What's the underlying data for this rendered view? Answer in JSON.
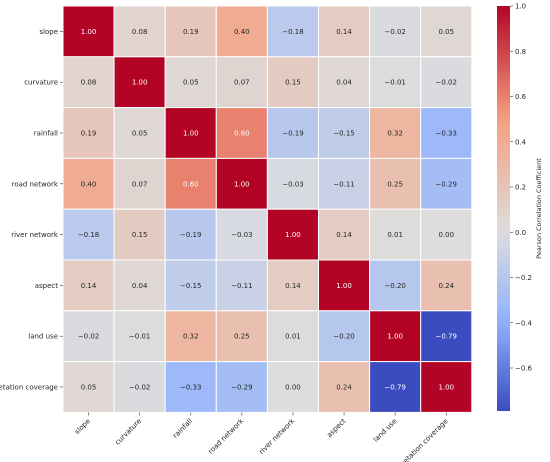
{
  "chart_data": {
    "type": "heatmap",
    "rows": [
      "slope",
      "curvature",
      "rainfall",
      "road network",
      "river network",
      "aspect",
      "land use",
      "vegetation coverage"
    ],
    "columns": [
      "slope",
      "curvature",
      "rainfall",
      "road network",
      "river network",
      "aspect",
      "land use",
      "vegetation coverage"
    ],
    "values": [
      [
        1.0,
        0.08,
        0.19,
        0.4,
        -0.18,
        0.14,
        -0.02,
        0.05
      ],
      [
        0.08,
        1.0,
        0.05,
        0.07,
        0.15,
        0.04,
        -0.01,
        -0.02
      ],
      [
        0.19,
        0.05,
        1.0,
        0.6,
        -0.19,
        -0.15,
        0.32,
        -0.33
      ],
      [
        0.4,
        0.07,
        0.6,
        1.0,
        -0.03,
        -0.11,
        0.25,
        -0.29
      ],
      [
        -0.18,
        0.15,
        -0.19,
        -0.03,
        1.0,
        0.14,
        0.01,
        0.0
      ],
      [
        0.14,
        0.04,
        -0.15,
        -0.11,
        0.14,
        1.0,
        -0.2,
        0.24
      ],
      [
        -0.02,
        -0.01,
        0.32,
        0.25,
        0.01,
        -0.2,
        1.0,
        -0.79
      ],
      [
        0.05,
        -0.02,
        -0.33,
        -0.29,
        0.0,
        0.24,
        -0.79,
        1.0
      ]
    ],
    "colorbar": {
      "label": "Pearson Correlation Coefficient",
      "range": [
        -0.79,
        1.0
      ],
      "ticks": [
        -0.6,
        -0.4,
        -0.2,
        0.0,
        0.2,
        0.4,
        0.6,
        0.8,
        1.0
      ],
      "tick_labels": [
        "−0.6",
        "−0.4",
        "−0.2",
        "0.0",
        "0.2",
        "0.4",
        "0.6",
        "0.8",
        "1.0"
      ],
      "colormap": "coolwarm"
    },
    "annotations_format": "2 decimals",
    "colors": {
      "low": "#3b4cc0",
      "mid": "#dddddd",
      "high": "#b40426"
    }
  }
}
